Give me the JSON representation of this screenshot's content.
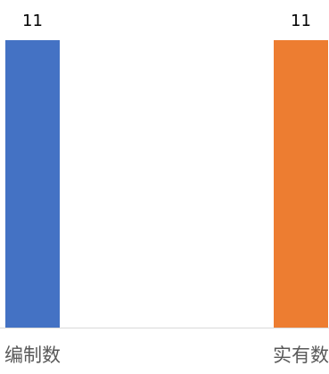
{
  "chart_data": {
    "type": "bar",
    "categories": [
      "编制数",
      "实有数"
    ],
    "values": [
      11,
      11
    ],
    "data_labels": [
      "11",
      "11"
    ],
    "colors": [
      "#4472C4",
      "#ED7D31"
    ],
    "ylim": [
      0,
      11
    ],
    "grid": false,
    "legend": "none"
  }
}
